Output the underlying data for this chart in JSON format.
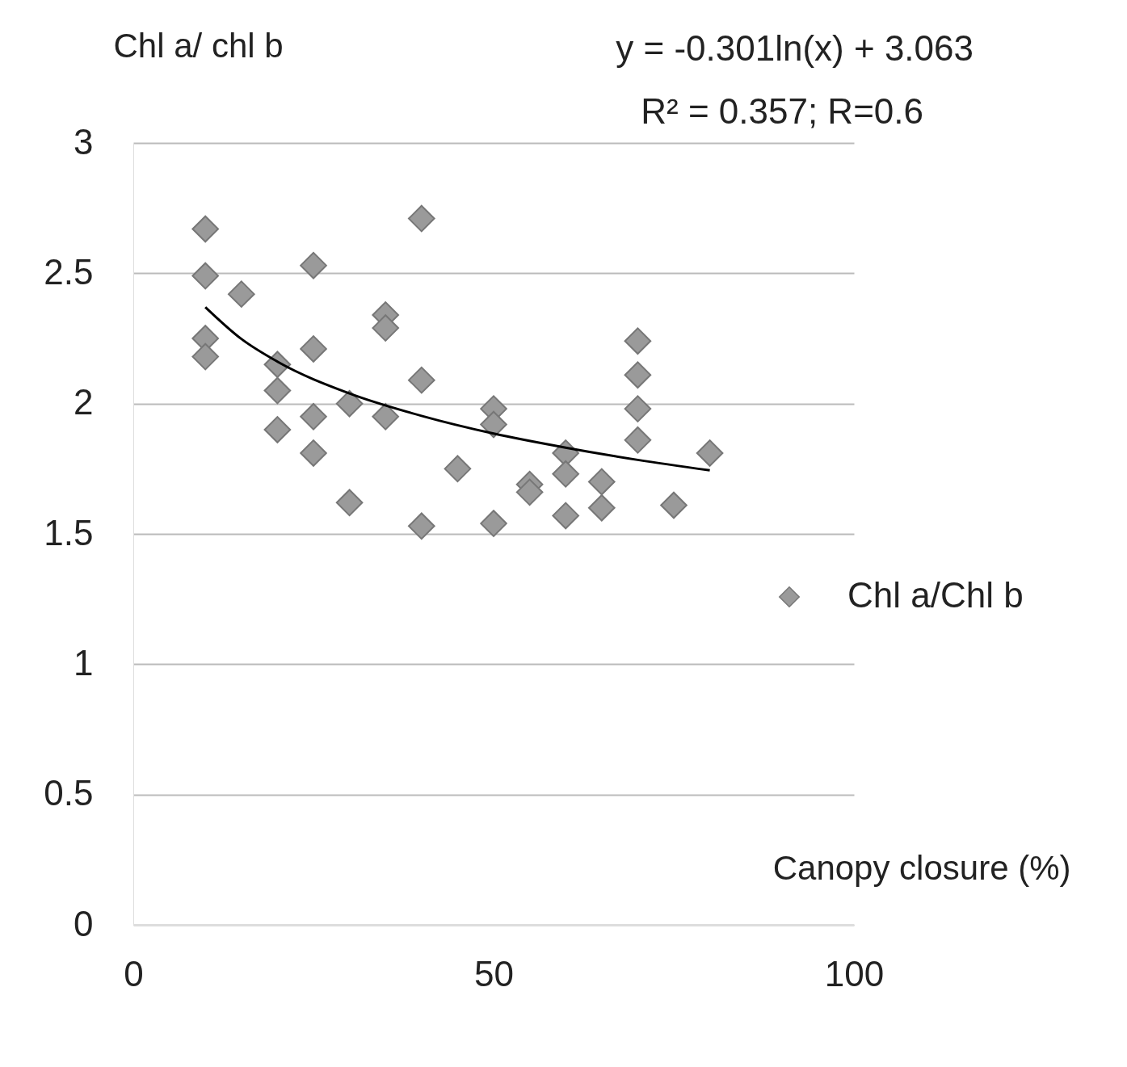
{
  "chart_data": {
    "type": "scatter",
    "ylabel": "Chl a/ chl b",
    "xlabel": "Canopy closure (%)",
    "annotations": [
      "y = -0.301ln(x) + 3.063",
      "R² = 0.357; R=0.6"
    ],
    "xlim": [
      0,
      100
    ],
    "xticks": [
      0,
      50,
      100
    ],
    "ylim": [
      0,
      3
    ],
    "yticks": [
      0,
      0.5,
      1,
      1.5,
      2,
      2.5,
      3
    ],
    "grid": "y",
    "legend": "right",
    "series": [
      {
        "name": "Chl a/Chl b",
        "marker": "diamond",
        "color": "#9a9a9a",
        "x": [
          10,
          10,
          10,
          10,
          15,
          20,
          20,
          20,
          25,
          25,
          25,
          25,
          30,
          30,
          35,
          35,
          35,
          40,
          40,
          40,
          45,
          50,
          50,
          50,
          55,
          55,
          60,
          60,
          60,
          65,
          65,
          70,
          70,
          70,
          70,
          75,
          80
        ],
        "values": [
          2.67,
          2.49,
          2.25,
          2.18,
          2.42,
          2.15,
          2.05,
          1.9,
          2.53,
          2.21,
          1.95,
          1.81,
          2.0,
          1.62,
          2.34,
          2.29,
          1.95,
          2.71,
          2.09,
          1.53,
          1.75,
          1.98,
          1.92,
          1.54,
          1.69,
          1.66,
          1.81,
          1.73,
          1.57,
          1.7,
          1.6,
          2.24,
          2.11,
          1.98,
          1.86,
          1.61,
          1.81
        ]
      },
      {
        "type": "line",
        "color": "#000000",
        "x": [
          10,
          15,
          20,
          30,
          40,
          50,
          60,
          70,
          80
        ],
        "values": [
          2.37,
          2.248,
          2.161,
          2.039,
          1.953,
          1.885,
          1.831,
          1.784,
          1.744
        ]
      }
    ]
  }
}
